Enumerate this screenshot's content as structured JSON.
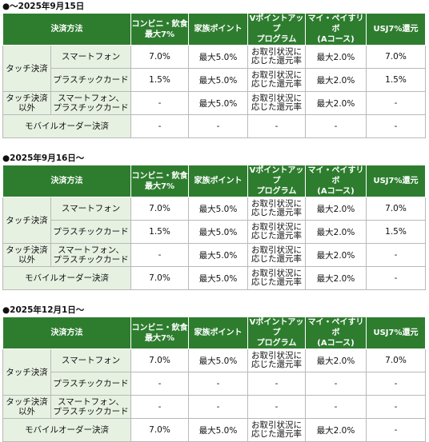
{
  "sections": [
    {
      "title": "●～2025年9月15日",
      "headers": [
        "決済方法",
        "コンビニ・飲食\n最大7%",
        "家族ポイント",
        "Vポイントアップ\nプログラム",
        "マイ・ペイすリボ\n(Aコース)",
        "USJ7%還元"
      ],
      "group_touch": "タッチ決済",
      "group_nontouch": "タッチ決済以外",
      "rows": [
        {
          "label": "スマートフォン",
          "c1": "7.0%",
          "c2": "最大5.0%",
          "c3": "お取引状況に\n応じた還元率",
          "c4": "最大2.0%",
          "c5": "7.0%"
        },
        {
          "label": "プラスチックカード",
          "c1": "1.5%",
          "c2": "最大5.0%",
          "c3": "お取引状況に\n応じた還元率",
          "c4": "最大2.0%",
          "c5": "1.5%"
        },
        {
          "label": "スマートフォン、\nプラスチックカード",
          "c1": "-",
          "c2": "最大5.0%",
          "c3": "お取引状況に\n応じた還元率",
          "c4": "最大2.0%",
          "c5": "-"
        },
        {
          "label": "モバイルオーダー決済",
          "c1": "-",
          "c2": "-",
          "c3": "-",
          "c4": "-",
          "c5": "-"
        }
      ]
    },
    {
      "title": "●2025年9月16日～",
      "headers": [
        "決済方法",
        "コンビニ・飲食\n最大7%",
        "家族ポイント",
        "Vポイントアップ\nプログラム",
        "マイ・ペイすリボ\n(Aコース)",
        "USJ7%還元"
      ],
      "group_touch": "タッチ決済",
      "group_nontouch": "タッチ決済以外",
      "rows": [
        {
          "label": "スマートフォン",
          "c1": "7.0%",
          "c2": "最大5.0%",
          "c3": "お取引状況に\n応じた還元率",
          "c4": "最大2.0%",
          "c5": "7.0%"
        },
        {
          "label": "プラスチックカード",
          "c1": "1.5%",
          "c2": "最大5.0%",
          "c3": "お取引状況に\n応じた還元率",
          "c4": "最大2.0%",
          "c5": "1.5%"
        },
        {
          "label": "スマートフォン、\nプラスチックカード",
          "c1": "-",
          "c2": "最大5.0%",
          "c3": "お取引状況に\n応じた還元率",
          "c4": "最大2.0%",
          "c5": "-"
        },
        {
          "label": "モバイルオーダー決済",
          "c1": "7.0%",
          "c2": "最大5.0%",
          "c3": "お取引状況に\n応じた還元率",
          "c4": "最大2.0%",
          "c5": "-"
        }
      ]
    },
    {
      "title": "●2025年12月1日～",
      "headers": [
        "決済方法",
        "コンビニ・飲食\n最大7%",
        "家族ポイント",
        "Vポイントアップ\nプログラム",
        "マイ・ペイすリボ\n(Aコース)",
        "USJ7%還元"
      ],
      "group_touch": "タッチ決済",
      "group_nontouch": "タッチ決済以外",
      "rows": [
        {
          "label": "スマートフォン",
          "c1": "7.0%",
          "c2": "最大5.0%",
          "c3": "お取引状況に\n応じた還元率",
          "c4": "最大2.0%",
          "c5": "7.0%"
        },
        {
          "label": "プラスチックカード",
          "c1": "-",
          "c2": "-",
          "c3": "-",
          "c4": "-",
          "c5": "-"
        },
        {
          "label": "スマートフォン、\nプラスチックカード",
          "c1": "-",
          "c2": "-",
          "c3": "-",
          "c4": "-",
          "c5": "-"
        },
        {
          "label": "モバイルオーダー決済",
          "c1": "7.0%",
          "c2": "最大5.0%",
          "c3": "お取引状況に\n応じた還元率",
          "c4": "最大2.0%",
          "c5": "-"
        }
      ]
    }
  ]
}
